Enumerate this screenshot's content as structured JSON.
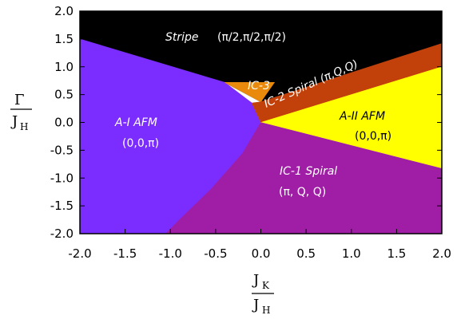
{
  "chart_data": {
    "type": "area",
    "title": "",
    "xlabel": {
      "main": "J",
      "sub": "K",
      "denominator": "J",
      "denominator_sub": "H"
    },
    "ylabel": {
      "main": "Γ",
      "denominator": "J",
      "denominator_sub": "H"
    },
    "xlim": [
      -2.0,
      2.0
    ],
    "ylim": [
      -2.0,
      2.0
    ],
    "x_ticks": [
      "-2.0",
      "-1.5",
      "-1.0",
      "-0.5",
      "0.0",
      "0.5",
      "1.0",
      "1.5",
      "2.0"
    ],
    "y_ticks": [
      "2.0",
      "1.5",
      "1.0",
      "0.5",
      "0.0",
      "-0.5",
      "-1.0",
      "-1.5",
      "-2.0"
    ],
    "grid": false,
    "regions": [
      {
        "name": "Stripe",
        "labels": [
          "Stripe",
          "(π/2,π/2,π/2)"
        ],
        "color": "#000000",
        "boundary": [
          [
            -2.0,
            2.0
          ],
          [
            2.0,
            2.0
          ],
          [
            2.0,
            1.42
          ],
          [
            0.0,
            0.37
          ],
          [
            -0.4,
            0.72
          ],
          [
            -2.0,
            1.5
          ]
        ]
      },
      {
        "name": "A-I AFM",
        "labels": [
          "A-I AFM",
          "(0,0,π)"
        ],
        "color": "#7b2cff",
        "boundary": [
          [
            -2.0,
            1.5
          ],
          [
            -0.4,
            0.72
          ],
          [
            -0.1,
            0.35
          ],
          [
            0.0,
            0.0
          ],
          [
            -0.2,
            -0.55
          ],
          [
            -0.55,
            -1.2
          ],
          [
            -0.9,
            -1.75
          ],
          [
            -1.05,
            -2.0
          ],
          [
            -2.0,
            -2.0
          ]
        ]
      },
      {
        "name": "IC-3",
        "labels": [
          "IC-3"
        ],
        "color": "#e98a0d",
        "boundary": [
          [
            -0.4,
            0.72
          ],
          [
            0.15,
            0.72
          ],
          [
            0.0,
            0.37
          ]
        ]
      },
      {
        "name": "IC-2 Spiral",
        "labels": [
          "IC-2 Spiral (π,Q,Q)"
        ],
        "color": "#c2410b",
        "boundary": [
          [
            0.0,
            0.37
          ],
          [
            2.0,
            1.42
          ],
          [
            2.0,
            1.0
          ],
          [
            0.0,
            0.0
          ],
          [
            -0.1,
            0.35
          ]
        ]
      },
      {
        "name": "A-II AFM",
        "labels": [
          "A-II AFM",
          "(0,0,π)"
        ],
        "color": "#ffff00",
        "boundary": [
          [
            0.0,
            0.0
          ],
          [
            2.0,
            1.0
          ],
          [
            2.0,
            -0.83
          ]
        ]
      },
      {
        "name": "IC-1 Spiral",
        "labels": [
          "IC-1 Spiral",
          "(π, Q, Q)"
        ],
        "color": "#a01ea6",
        "boundary": [
          [
            0.0,
            0.0
          ],
          [
            2.0,
            -0.83
          ],
          [
            2.0,
            -2.0
          ],
          [
            -1.05,
            -2.0
          ],
          [
            -0.9,
            -1.75
          ],
          [
            -0.55,
            -1.2
          ],
          [
            -0.2,
            -0.55
          ]
        ]
      }
    ]
  }
}
